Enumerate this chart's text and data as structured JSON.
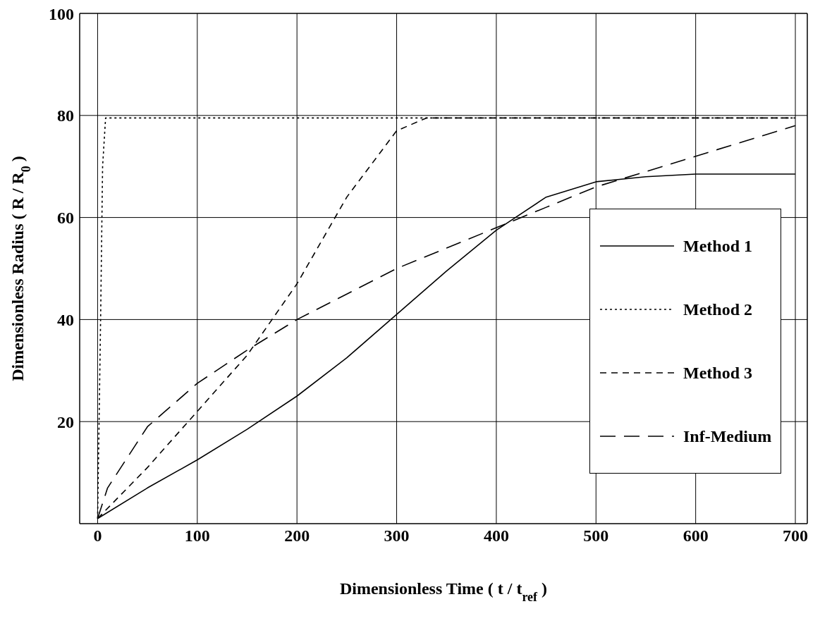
{
  "chart_data": {
    "type": "line",
    "xlabel": "Dimensionless Time ( t / t$_{ref}$ )",
    "ylabel": "Dimensionless Radius ( R / R$_{0}$ )",
    "xlim": [
      -18,
      712
    ],
    "xticks": [
      0,
      100,
      200,
      300,
      400,
      500,
      600,
      700
    ],
    "ylim": [
      0,
      100
    ],
    "yticks": [
      20,
      40,
      60,
      80,
      100
    ],
    "grid": true,
    "legend": "right",
    "marker": "none",
    "series": [
      {
        "name": "Method 1",
        "color": "#000000",
        "line_style": "solid",
        "x": [
          0,
          50,
          100,
          150,
          200,
          250,
          300,
          350,
          400,
          450,
          500,
          550,
          600,
          700
        ],
        "values": [
          1,
          7,
          12.5,
          18.5,
          25,
          32.5,
          41,
          49.5,
          57.5,
          64,
          67,
          68,
          68.5,
          68.5
        ]
      },
      {
        "name": "Method 2",
        "color": "#000000",
        "line_style": "dotted",
        "x": [
          0,
          3,
          5,
          8,
          700
        ],
        "values": [
          1,
          40,
          70,
          79.5,
          79.5
        ]
      },
      {
        "name": "Method 3",
        "color": "#000000",
        "line_style": "dashed",
        "x": [
          0,
          50,
          100,
          150,
          200,
          250,
          300,
          330,
          700
        ],
        "values": [
          1,
          11,
          22,
          33,
          47,
          64,
          77,
          79.5,
          79.5
        ]
      },
      {
        "name": "Inf-Medium",
        "color": "#000000",
        "line_style": "dashed",
        "x": [
          0,
          10,
          50,
          100,
          150,
          200,
          250,
          300,
          350,
          400,
          450,
          500,
          550,
          600,
          650,
          700
        ],
        "values": [
          1,
          7,
          19,
          27.5,
          34,
          40,
          45,
          50,
          54,
          58,
          62,
          66,
          69,
          72,
          75,
          78
        ]
      }
    ]
  }
}
